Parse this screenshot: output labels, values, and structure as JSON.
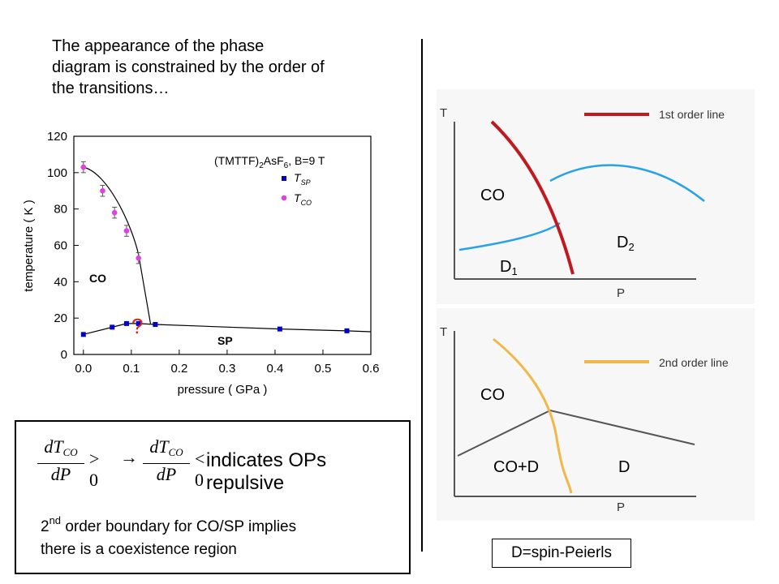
{
  "intro": {
    "line1": "The appearance of the phase",
    "line2": "diagram is constrained by the order of",
    "line3": "the transitions…"
  },
  "chart_data": {
    "type": "scatter",
    "title": "(TMTTF)2AsF6, B=9 T",
    "title_parts": {
      "pre": "(TMTTF)",
      "sub": "2",
      "post": "AsF",
      "sub2": "6",
      "tail": ", B=9 T"
    },
    "xlabel": "pressure ( GPa )",
    "ylabel": "temperature ( K )",
    "xlim": [
      -0.02,
      0.6
    ],
    "ylim": [
      0,
      120
    ],
    "xticks": [
      "0.0",
      "0.1",
      "0.2",
      "0.3",
      "0.4",
      "0.5",
      "0.6"
    ],
    "yticks": [
      "0",
      "20",
      "40",
      "60",
      "80",
      "100",
      "120"
    ],
    "legend": "top-right",
    "series": [
      {
        "name": "T_SP",
        "label_main": "T",
        "label_sub": "SP",
        "marker": "square",
        "color": "#0000cc",
        "x": [
          0.0,
          0.06,
          0.09,
          0.115,
          0.15,
          0.41,
          0.55
        ],
        "y": [
          11,
          15,
          17,
          17,
          16.5,
          14,
          13
        ]
      },
      {
        "name": "T_CO",
        "label_main": "T",
        "label_sub": "CO",
        "marker": "circle",
        "color": "#e040e0",
        "x": [
          0.0,
          0.04,
          0.065,
          0.09,
          0.115
        ],
        "y": [
          103,
          90,
          78,
          68,
          53
        ]
      }
    ],
    "error_bars": {
      "series": "T_CO",
      "err": [
        3,
        3,
        3,
        3,
        3
      ]
    },
    "annotations": {
      "co_label": "CO",
      "sp_label": "SP",
      "question": "?"
    }
  },
  "equation": {
    "numerator": "dT",
    "sub": "CO",
    "denominator": "dP",
    "gt": "> 0",
    "arrow": "→",
    "lt": "< 0",
    "text": "indicates OPs repulsive"
  },
  "note": {
    "line1_pre": "2",
    "line1_sup": "nd",
    "line1_post": " order boundary for CO/SP implies",
    "line2": "there is a coexistence region"
  },
  "diagram1": {
    "t_axis": "T",
    "p_axis": "P",
    "legend": "1st order line",
    "co": "CO",
    "d2_main": "D",
    "d2_sub": "2",
    "d1_main": "D",
    "d1_sub": "1",
    "line_color": "#c0191f",
    "curve_color": "#29a3e6"
  },
  "diagram2": {
    "t_axis": "T",
    "p_axis": "P",
    "legend": "2nd order line",
    "co": "CO",
    "cod": "CO+D",
    "d": "D",
    "line_color": "#f0b84a",
    "curve_color": "#555555"
  },
  "legend_box": "D=spin-Peierls"
}
